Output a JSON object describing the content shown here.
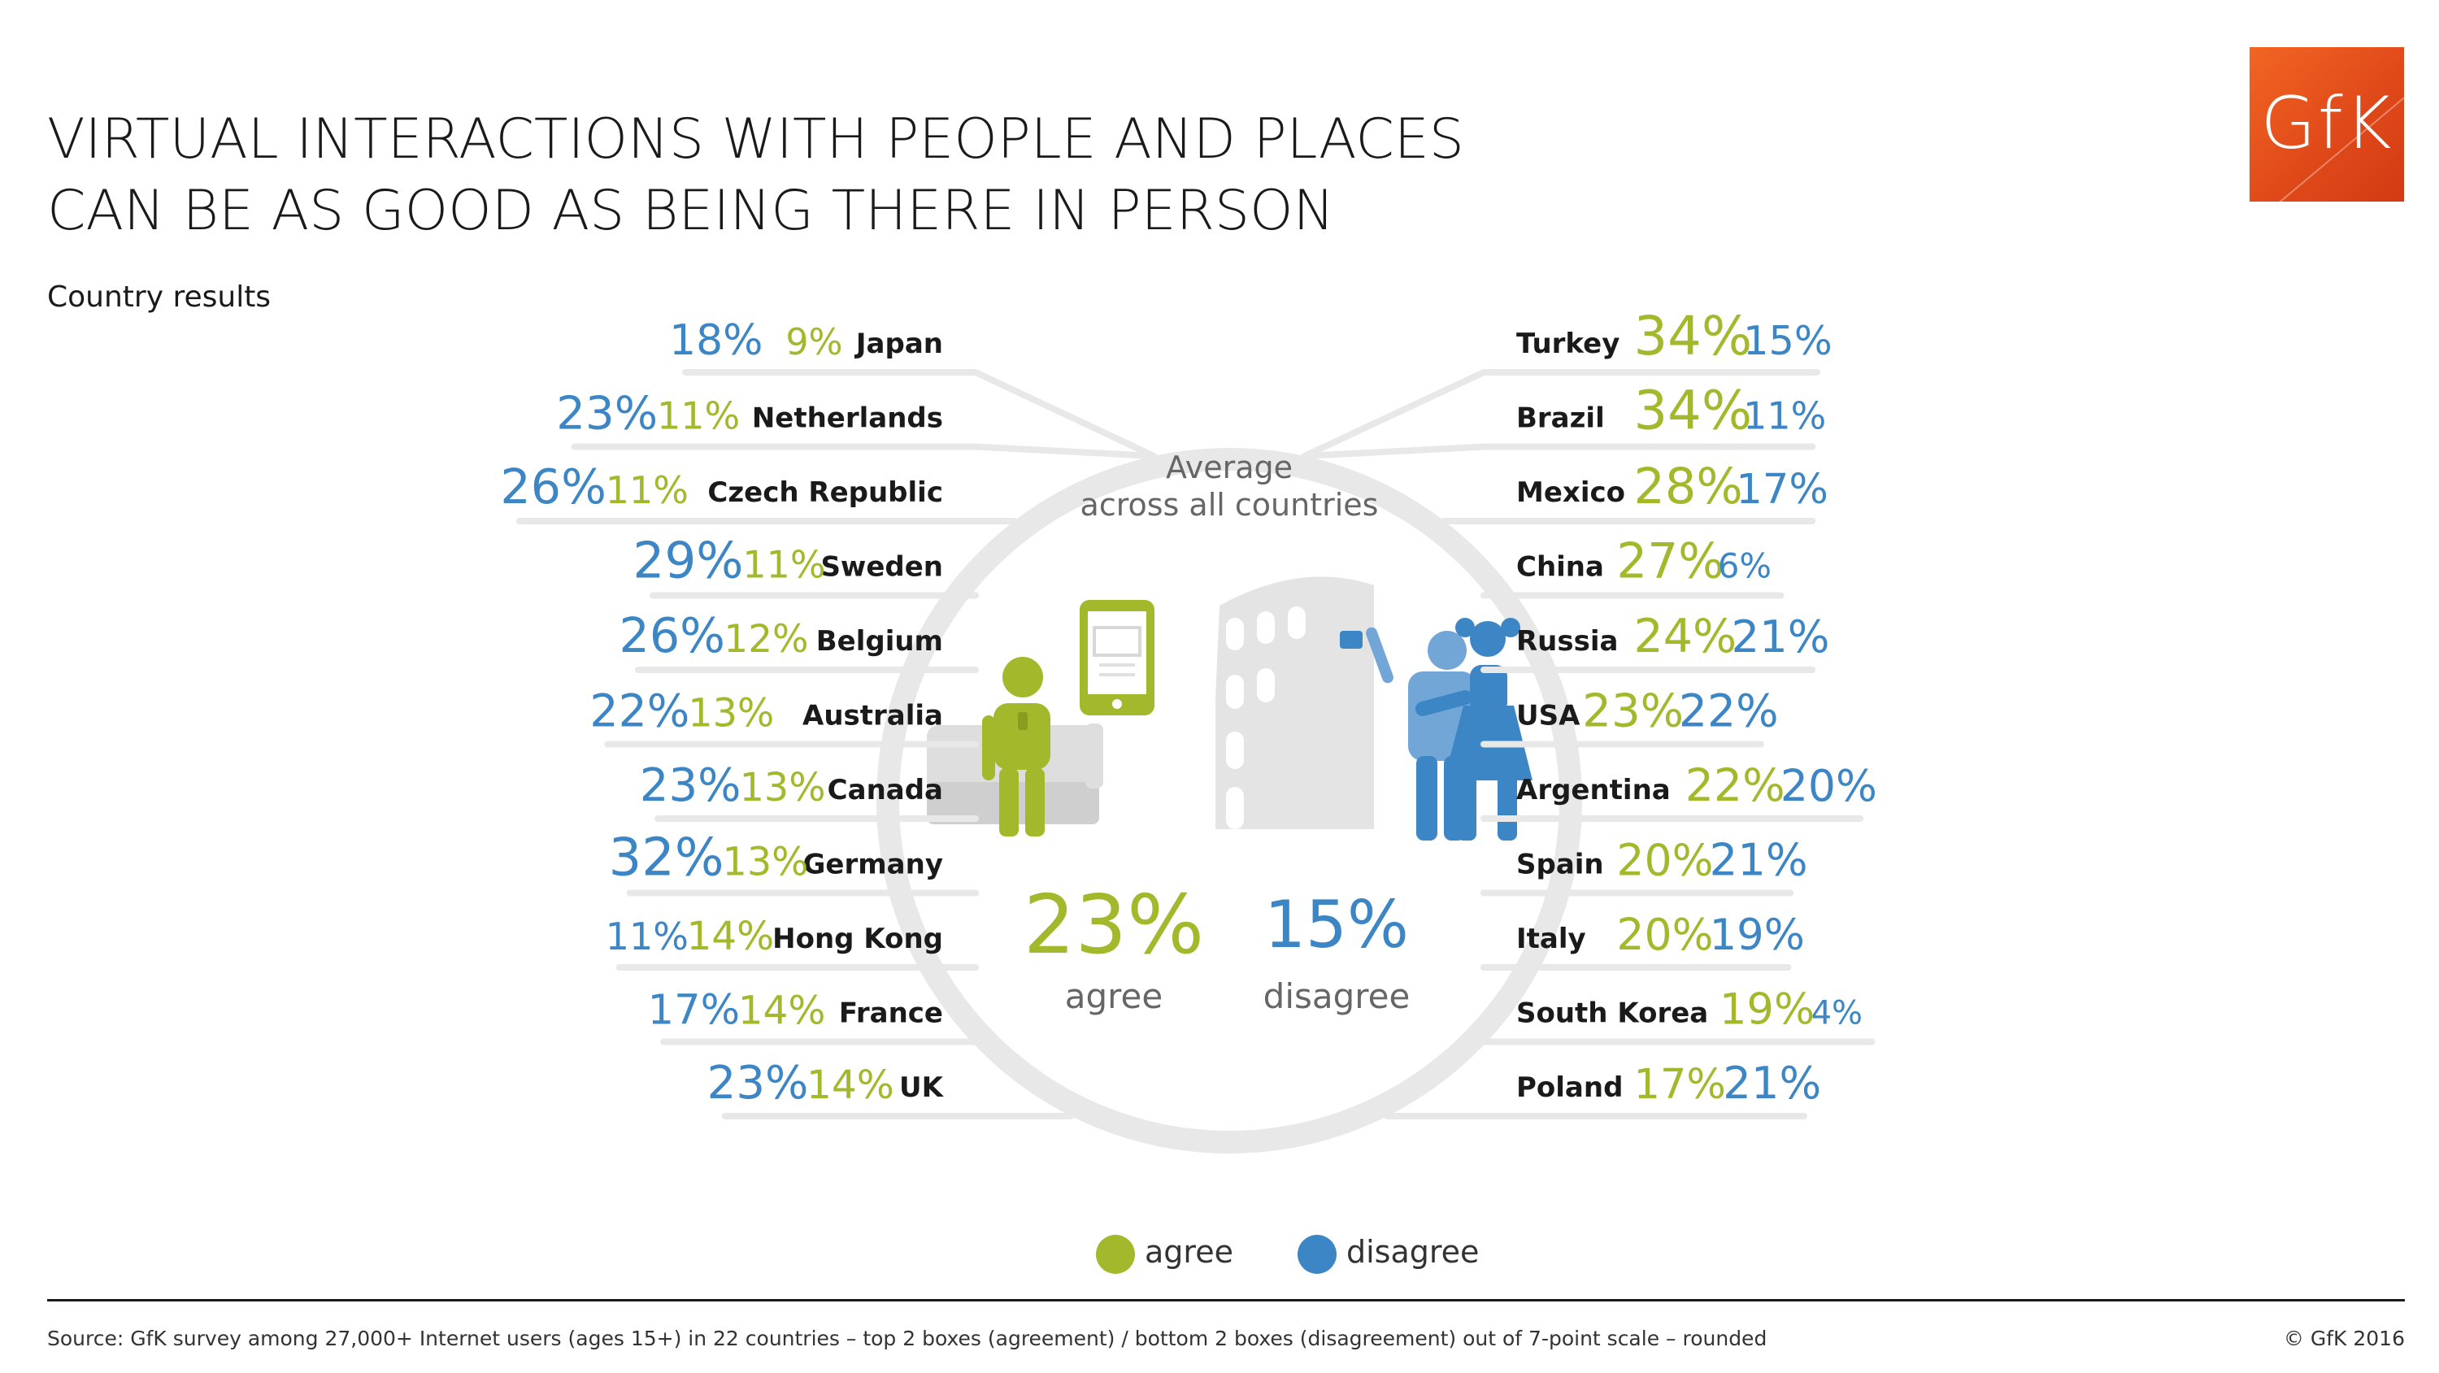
{
  "title_lines": [
    "VIRTUAL INTERACTIONS WITH PEOPLE AND PLACES",
    "CAN BE AS GOOD AS BEING THERE IN PERSON"
  ],
  "subtitle": "Country results",
  "logo_text": "GfK",
  "colors": {
    "agree": "#a4b82c",
    "disagree": "#3d86c6",
    "ring": "#e8e8e8",
    "label": "#1a1a1a",
    "muted": "#666666"
  },
  "center": {
    "heading_line1": "Average",
    "heading_line2": "across all countries",
    "agree_value": "23%",
    "agree_label": "agree",
    "disagree_value": "15%",
    "disagree_label": "disagree"
  },
  "legend": {
    "agree": "agree",
    "disagree": "disagree"
  },
  "footer": {
    "source": "Source: GfK survey among 27,000+ Internet users (ages 15+) in 22 countries – top 2 boxes (agreement) / bottom 2 boxes (disagreement) out of 7-point scale – rounded",
    "copyright": "© GfK 2016"
  },
  "chart_data": {
    "type": "table",
    "columns": [
      "country",
      "agree",
      "disagree"
    ],
    "average": {
      "agree": 23,
      "disagree": 15
    },
    "left": [
      {
        "country": "Japan",
        "agree": 9,
        "disagree": 18
      },
      {
        "country": "Netherlands",
        "agree": 11,
        "disagree": 23
      },
      {
        "country": "Czech Republic",
        "agree": 11,
        "disagree": 26
      },
      {
        "country": "Sweden",
        "agree": 11,
        "disagree": 29
      },
      {
        "country": "Belgium",
        "agree": 12,
        "disagree": 26
      },
      {
        "country": "Australia",
        "agree": 13,
        "disagree": 22
      },
      {
        "country": "Canada",
        "agree": 13,
        "disagree": 23
      },
      {
        "country": "Germany",
        "agree": 13,
        "disagree": 32
      },
      {
        "country": "Hong Kong",
        "agree": 14,
        "disagree": 11
      },
      {
        "country": "France",
        "agree": 14,
        "disagree": 17
      },
      {
        "country": "UK",
        "agree": 14,
        "disagree": 23
      }
    ],
    "right": [
      {
        "country": "Turkey",
        "agree": 34,
        "disagree": 15
      },
      {
        "country": "Brazil",
        "agree": 34,
        "disagree": 11
      },
      {
        "country": "Mexico",
        "agree": 28,
        "disagree": 17
      },
      {
        "country": "China",
        "agree": 27,
        "disagree": 6
      },
      {
        "country": "Russia",
        "agree": 24,
        "disagree": 21
      },
      {
        "country": "USA",
        "agree": 23,
        "disagree": 22
      },
      {
        "country": "Argentina",
        "agree": 22,
        "disagree": 20
      },
      {
        "country": "Spain",
        "agree": 20,
        "disagree": 21
      },
      {
        "country": "Italy",
        "agree": 20,
        "disagree": 19
      },
      {
        "country": "South Korea",
        "agree": 19,
        "disagree": 4
      },
      {
        "country": "Poland",
        "agree": 17,
        "disagree": 21
      }
    ]
  }
}
